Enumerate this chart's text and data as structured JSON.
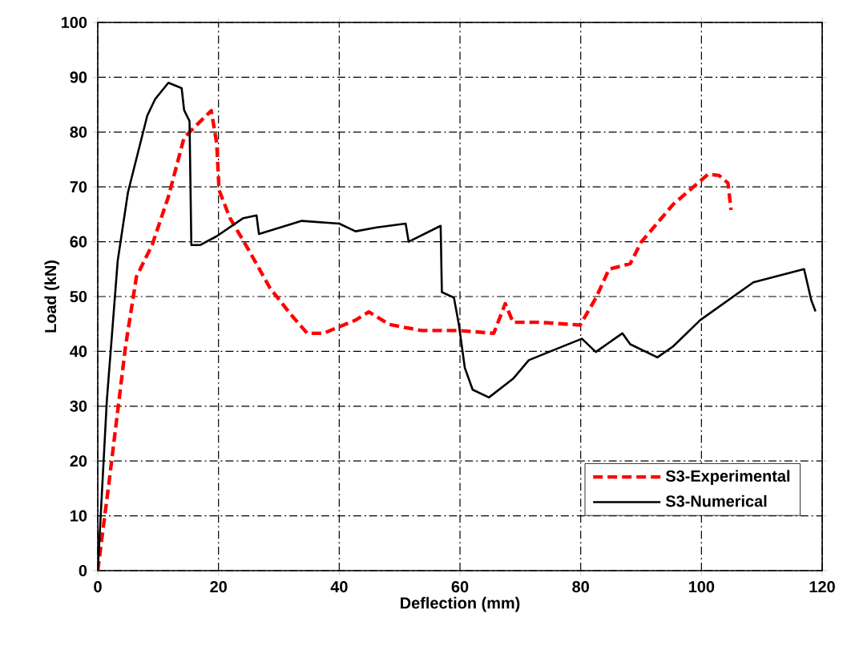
{
  "chart_data": {
    "type": "line",
    "xlabel": "Deflection (mm)",
    "ylabel": "Load (kN)",
    "xlim": [
      0,
      120
    ],
    "ylim": [
      0,
      100
    ],
    "xticks": [
      0,
      20,
      40,
      60,
      80,
      100,
      120
    ],
    "yticks": [
      0,
      10,
      20,
      30,
      40,
      50,
      60,
      70,
      80,
      90,
      100
    ],
    "grid": true,
    "legend": "bottom right",
    "series": [
      {
        "name": "S3-Experimental",
        "color": "#ff0000",
        "line_style": "dashed",
        "x": [
          0,
          1.9,
          4.6,
          6.4,
          9,
          11.7,
          14.3,
          17.4,
          18.8,
          19.7,
          20.1,
          21.9,
          25,
          28.5,
          32,
          34.7,
          37.4,
          42.7,
          44.9,
          48.3,
          53.6,
          59.8,
          65.6,
          67.5,
          68.8,
          73.2,
          79.9,
          82.5,
          84.7,
          88.2,
          90,
          95.3,
          101.1,
          102.9,
          104.4,
          104.9
        ],
        "values": [
          0,
          16.4,
          40.9,
          53.6,
          59.4,
          68.2,
          79,
          82.4,
          83.9,
          78,
          69.4,
          64.3,
          58.5,
          51.6,
          46.7,
          43.3,
          43.3,
          45.7,
          47.2,
          44.9,
          43.8,
          43.8,
          43.3,
          48.7,
          45.3,
          45.3,
          44.8,
          49.7,
          55,
          56,
          59.9,
          66.8,
          72.3,
          72.1,
          70.7,
          65.8
        ]
      },
      {
        "name": "S3-Numerical",
        "color": "#000000",
        "line_style": "solid",
        "x": [
          0,
          1.5,
          3.3,
          5,
          8.2,
          9.5,
          11.7,
          13.9,
          14.3,
          15.2,
          15.5,
          17,
          19.7,
          24.1,
          26.3,
          26.7,
          33.8,
          40,
          42.7,
          46.2,
          51,
          51.5,
          56.8,
          57,
          59,
          59.8,
          60.8,
          62.1,
          64.8,
          68.8,
          71.4,
          75.9,
          80.2,
          82.5,
          86.9,
          88.2,
          92.7,
          95.3,
          99.8,
          108.6,
          117,
          118.2,
          118.9
        ],
        "values": [
          0,
          31,
          56.5,
          69,
          83,
          86,
          89,
          88,
          84,
          82,
          59.4,
          59.4,
          61,
          64.3,
          64.8,
          61.4,
          63.8,
          63.3,
          61.9,
          62.6,
          63.3,
          60,
          62.9,
          50.8,
          49.8,
          45,
          37,
          33,
          31.6,
          35,
          38.4,
          40.4,
          42.3,
          39.9,
          43.3,
          41.3,
          38.9,
          40.9,
          45.7,
          52.6,
          55,
          49.3,
          47.3
        ]
      }
    ]
  }
}
